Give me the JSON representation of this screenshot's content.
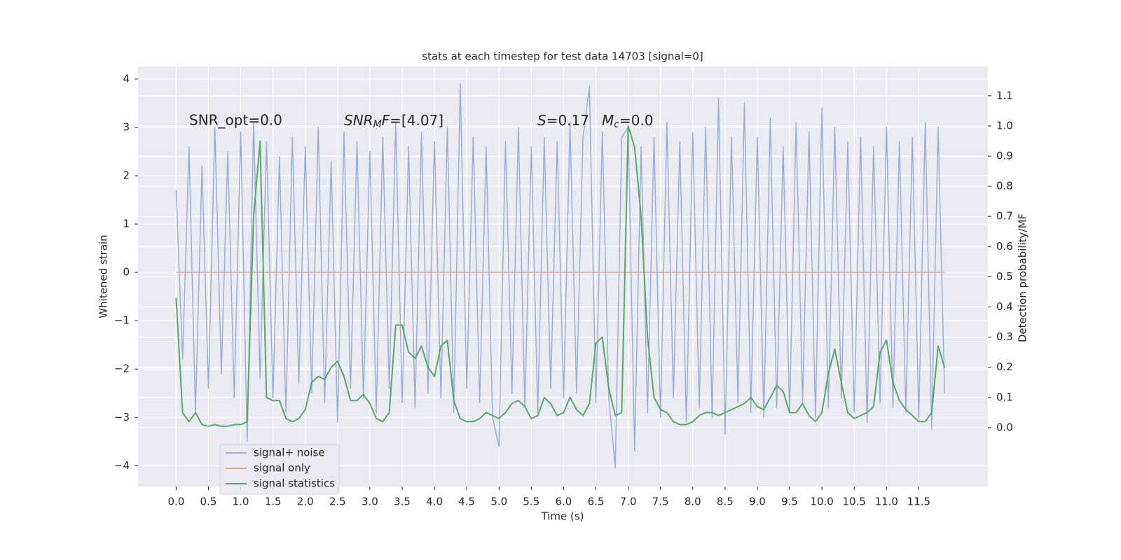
{
  "chart_data": {
    "type": "line",
    "title": "stats at each timestep for test data 14703 [signal=0]",
    "xlabel": "Time (s)",
    "ylabel": "Whitened strain",
    "y2label": "Detection probability/MF",
    "annotations": [
      "SNR_opt=0.0",
      [
        "SNR",
        "M",
        "F",
        "=[4.07]"
      ],
      [
        "S",
        "=0.17"
      ],
      [
        "M",
        "c",
        "=0.0"
      ]
    ],
    "x": [
      0,
      0.1,
      0.2,
      0.3,
      0.4,
      0.5,
      0.6,
      0.7,
      0.8,
      0.9,
      1,
      1.1,
      1.2,
      1.3,
      1.4,
      1.5,
      1.6,
      1.7,
      1.8,
      1.9,
      2,
      2.1,
      2.2,
      2.3,
      2.4,
      2.5,
      2.6,
      2.7,
      2.8,
      2.9,
      3,
      3.1,
      3.2,
      3.3,
      3.4,
      3.5,
      3.6,
      3.7,
      3.8,
      3.9,
      4,
      4.1,
      4.2,
      4.3,
      4.4,
      4.5,
      4.6,
      4.7,
      4.8,
      4.9,
      5,
      5.1,
      5.2,
      5.3,
      5.4,
      5.5,
      5.6,
      5.7,
      5.8,
      5.9,
      6,
      6.1,
      6.2,
      6.3,
      6.4,
      6.5,
      6.6,
      6.7,
      6.8,
      6.9,
      7,
      7.1,
      7.2,
      7.3,
      7.4,
      7.5,
      7.6,
      7.7,
      7.8,
      7.9,
      8,
      8.1,
      8.2,
      8.3,
      8.4,
      8.5,
      8.6,
      8.7,
      8.8,
      8.9,
      9,
      9.1,
      9.2,
      9.3,
      9.4,
      9.5,
      9.6,
      9.7,
      9.8,
      9.9,
      10,
      10.1,
      10.2,
      10.3,
      10.4,
      10.5,
      10.6,
      10.7,
      10.8,
      10.9,
      11,
      11.1,
      11.2,
      11.3,
      11.4,
      11.5,
      11.6,
      11.7,
      11.8,
      11.9
    ],
    "series": [
      {
        "name": "signal+ noise",
        "color": "#9aaed3",
        "axis": "y",
        "values": [
          1.7,
          -1.8,
          2.6,
          -2.9,
          2.2,
          -2.4,
          3.0,
          -2.1,
          2.5,
          -2.6,
          2.9,
          -3.5,
          3.1,
          -2.2,
          2.7,
          -2.6,
          2.4,
          -2.9,
          2.8,
          -2.3,
          2.6,
          -2.5,
          3.0,
          -2.7,
          2.3,
          -3.1,
          2.9,
          -2.4,
          2.7,
          -2.6,
          2.5,
          -2.9,
          2.8,
          -2.4,
          3.1,
          -2.7,
          2.6,
          -2.8,
          2.9,
          -2.5,
          2.7,
          -2.6,
          3.0,
          -2.9,
          3.9,
          -2.4,
          2.8,
          -2.7,
          2.6,
          -3.0,
          -3.6,
          2.7,
          -2.5,
          3.0,
          -2.8,
          2.6,
          -2.9,
          2.8,
          -2.4,
          2.7,
          -2.6,
          3.1,
          -2.5,
          2.8,
          3.85,
          -2.7,
          2.9,
          -2.6,
          -4.05,
          2.8,
          3.0,
          -3.7,
          2.6,
          -2.9,
          2.8,
          -3.0,
          3.1,
          -2.6,
          2.7,
          -3.1,
          2.9,
          -2.8,
          3.0,
          -3.0,
          3.6,
          -3.35,
          2.8,
          -2.7,
          3.5,
          -2.9,
          2.8,
          -3.0,
          3.2,
          -2.8,
          2.6,
          -2.9,
          3.1,
          -2.7,
          2.9,
          -3.0,
          3.4,
          -2.8,
          3.0,
          -2.6,
          2.7,
          -2.9,
          2.8,
          -3.1,
          2.6,
          -2.7,
          3.0,
          -2.8,
          2.7,
          -2.9,
          2.8,
          -3.0,
          3.1,
          -3.25,
          3.0,
          -2.5
        ]
      },
      {
        "name": "signal only",
        "color": "#e8a98a",
        "axis": "y",
        "values": [
          0,
          0,
          0,
          0,
          0,
          0,
          0,
          0,
          0,
          0,
          0,
          0,
          0,
          0,
          0,
          0,
          0,
          0,
          0,
          0,
          0,
          0,
          0,
          0,
          0,
          0,
          0,
          0,
          0,
          0,
          0,
          0,
          0,
          0,
          0,
          0,
          0,
          0,
          0,
          0,
          0,
          0,
          0,
          0,
          0,
          0,
          0,
          0,
          0,
          0,
          0,
          0,
          0,
          0,
          0,
          0,
          0,
          0,
          0,
          0,
          0,
          0,
          0,
          0,
          0,
          0,
          0,
          0,
          0,
          0,
          0,
          0,
          0,
          0,
          0,
          0,
          0,
          0,
          0,
          0,
          0,
          0,
          0,
          0,
          0,
          0,
          0,
          0,
          0,
          0,
          0,
          0,
          0,
          0,
          0,
          0,
          0,
          0,
          0,
          0,
          0,
          0,
          0,
          0,
          0,
          0,
          0,
          0,
          0,
          0,
          0,
          0,
          0,
          0,
          0,
          0,
          0,
          0,
          0,
          0
        ]
      },
      {
        "name": "signal statistics",
        "color": "#55a868",
        "axis": "y2",
        "values": [
          0.43,
          0.05,
          0.02,
          0.05,
          0.01,
          0.005,
          0.01,
          0.005,
          0.005,
          0.01,
          0.01,
          0.02,
          0.7,
          0.95,
          0.1,
          0.09,
          0.09,
          0.03,
          0.02,
          0.03,
          0.06,
          0.15,
          0.17,
          0.16,
          0.2,
          0.22,
          0.17,
          0.09,
          0.09,
          0.11,
          0.08,
          0.03,
          0.02,
          0.05,
          0.34,
          0.34,
          0.25,
          0.23,
          0.27,
          0.2,
          0.17,
          0.27,
          0.29,
          0.09,
          0.03,
          0.02,
          0.02,
          0.03,
          0.05,
          0.04,
          0.03,
          0.05,
          0.08,
          0.09,
          0.07,
          0.03,
          0.04,
          0.1,
          0.08,
          0.04,
          0.05,
          0.1,
          0.06,
          0.04,
          0.08,
          0.28,
          0.3,
          0.13,
          0.04,
          0.05,
          1.0,
          0.93,
          0.7,
          0.3,
          0.1,
          0.06,
          0.05,
          0.02,
          0.01,
          0.01,
          0.02,
          0.04,
          0.05,
          0.05,
          0.04,
          0.05,
          0.06,
          0.07,
          0.08,
          0.1,
          0.07,
          0.06,
          0.1,
          0.14,
          0.12,
          0.05,
          0.05,
          0.08,
          0.04,
          0.02,
          0.05,
          0.18,
          0.26,
          0.15,
          0.05,
          0.03,
          0.04,
          0.05,
          0.07,
          0.25,
          0.29,
          0.15,
          0.09,
          0.06,
          0.04,
          0.02,
          0.02,
          0.05,
          0.27,
          0.2
        ]
      }
    ],
    "xlim": [
      -0.59,
      12.57
    ],
    "xticks": [
      {
        "value": 0,
        "label": "0.0"
      },
      {
        "value": 0.5,
        "label": "0.5"
      },
      {
        "value": 1,
        "label": "1.0"
      },
      {
        "value": 1.5,
        "label": "1.5"
      },
      {
        "value": 2,
        "label": "2.0"
      },
      {
        "value": 2.5,
        "label": "2.5"
      },
      {
        "value": 3,
        "label": "3.0"
      },
      {
        "value": 3.5,
        "label": "3.5"
      },
      {
        "value": 4,
        "label": "4.0"
      },
      {
        "value": 4.5,
        "label": "4.5"
      },
      {
        "value": 5,
        "label": "5.0"
      },
      {
        "value": 5.5,
        "label": "5.5"
      },
      {
        "value": 6,
        "label": "6.0"
      },
      {
        "value": 6.5,
        "label": "6.5"
      },
      {
        "value": 7,
        "label": "7.0"
      },
      {
        "value": 7.5,
        "label": "7.5"
      },
      {
        "value": 8,
        "label": "8.0"
      },
      {
        "value": 8.5,
        "label": "8.5"
      },
      {
        "value": 9,
        "label": "9.0"
      },
      {
        "value": 9.5,
        "label": "9.5"
      },
      {
        "value": 10,
        "label": "10.0"
      },
      {
        "value": 10.5,
        "label": "10.5"
      },
      {
        "value": 11,
        "label": "11.0"
      },
      {
        "value": 11.5,
        "label": "11.5"
      }
    ],
    "ylim": [
      -4.43,
      4.26
    ],
    "yticks": [
      {
        "value": -4,
        "label": "−4"
      },
      {
        "value": -3,
        "label": "−3"
      },
      {
        "value": -2,
        "label": "−2"
      },
      {
        "value": -1,
        "label": "−1"
      },
      0,
      1,
      2,
      3,
      4
    ],
    "y2lim": [
      -0.195,
      1.197
    ],
    "y2ticks": [
      {
        "value": 0,
        "label": "0.0"
      },
      {
        "value": 0.1,
        "label": "0.1"
      },
      {
        "value": 0.2,
        "label": "0.2"
      },
      {
        "value": 0.3,
        "label": "0.3"
      },
      {
        "value": 0.4,
        "label": "0.4"
      },
      {
        "value": 0.5,
        "label": "0.5"
      },
      {
        "value": 0.6,
        "label": "0.6"
      },
      {
        "value": 0.7,
        "label": "0.7"
      },
      {
        "value": 0.8,
        "label": "0.8"
      },
      {
        "value": 0.9,
        "label": "0.9"
      },
      {
        "value": 1,
        "label": "1.0"
      },
      {
        "value": 1.1,
        "label": "1.1"
      }
    ],
    "grid": true,
    "legend_loc": "lower left"
  }
}
